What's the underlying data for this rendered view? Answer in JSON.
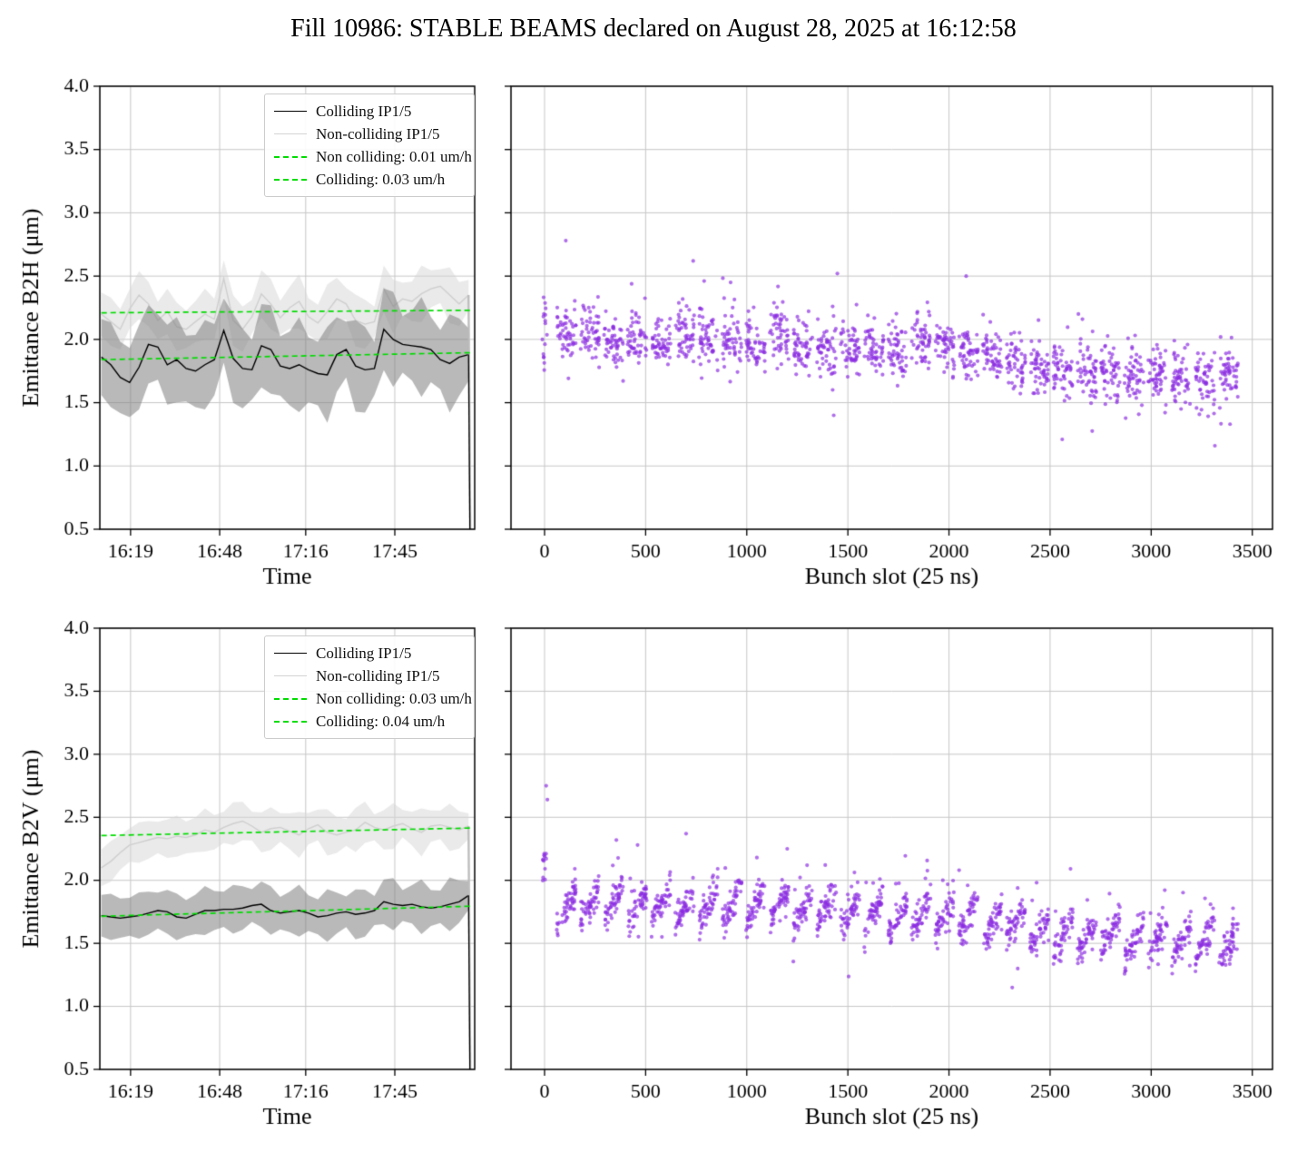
{
  "title": "Fill 10986: STABLE BEAMS declared on August 28, 2025 at 16:12:58",
  "colors": {
    "scatter": "#8a2be2",
    "fit_line": "#00dd00",
    "grid": "#c7c7c7",
    "axis": "#000000",
    "colliding_line": "#000000",
    "non_colliding_line": "#cfcfcf",
    "colliding_band": "rgba(128,128,128,0.55)",
    "non_colliding_band": "rgba(214,214,214,0.5)"
  },
  "chart_data": [
    {
      "id": "b2h_time",
      "type": "line",
      "xlabel": "Time",
      "ylabel": "Emittance B2H (μm)",
      "xlim": [
        0,
        122
      ],
      "ylim": [
        0.5,
        4.0
      ],
      "yticks": [
        0.5,
        1.0,
        1.5,
        2.0,
        2.5,
        3.0,
        3.5,
        4.0
      ],
      "xticks": {
        "pos": [
          10,
          39,
          67,
          96
        ],
        "labels": [
          "16:19",
          "16:48",
          "17:16",
          "17:45"
        ]
      },
      "grid": true,
      "legend": [
        {
          "label": "Colliding IP1/5",
          "style": "solid",
          "color": "#000000"
        },
        {
          "label": "Non-colliding IP1/5",
          "style": "solid",
          "color": "#d4d4d4"
        },
        {
          "label": "Non colliding: 0.01 um/h",
          "style": "dashed",
          "color": "#00dd00"
        },
        {
          "label": "Colliding: 0.03 um/h",
          "style": "dashed",
          "color": "#00dd00"
        }
      ],
      "t_start": 0.5,
      "t_end": 120,
      "series": [
        {
          "name": "Non-colliding IP1/5",
          "role": "non_colliding",
          "band_halfwidth": 0.17,
          "values": [
            2.2,
            2.14,
            2.08,
            2.24,
            2.35,
            2.28,
            2.15,
            2.22,
            2.1,
            2.08,
            2.14,
            2.2,
            2.16,
            2.48,
            2.15,
            2.08,
            2.18,
            2.36,
            2.28,
            2.17,
            2.25,
            2.3,
            2.18,
            2.13,
            2.22,
            2.32,
            2.28,
            2.15,
            2.12,
            2.14,
            2.4,
            2.26,
            2.32,
            2.3,
            2.36,
            2.4,
            2.42,
            2.35,
            2.28,
            2.35
          ]
        },
        {
          "name": "Colliding IP1/5",
          "role": "colliding",
          "band_halfwidth": 0.3,
          "values": [
            1.86,
            1.8,
            1.7,
            1.66,
            1.78,
            1.96,
            1.94,
            1.8,
            1.84,
            1.77,
            1.75,
            1.8,
            1.84,
            2.07,
            1.85,
            1.77,
            1.76,
            1.95,
            1.92,
            1.79,
            1.77,
            1.8,
            1.76,
            1.73,
            1.72,
            1.88,
            1.92,
            1.79,
            1.76,
            1.77,
            2.08,
            2.0,
            1.96,
            1.95,
            1.94,
            1.92,
            1.84,
            1.81,
            1.86,
            1.88
          ]
        }
      ],
      "fits": [
        {
          "name": "Non colliding: 0.01 um/h",
          "y_start": 2.21,
          "y_end": 2.23
        },
        {
          "name": "Colliding: 0.03 um/h",
          "y_start": 1.84,
          "y_end": 1.895
        }
      ],
      "end_drop": {
        "t": 120.6,
        "y_bottom": 0.32
      }
    },
    {
      "id": "b2h_bunch",
      "type": "scatter",
      "xlabel": "Bunch slot (25 ns)",
      "ylabel": "",
      "xlim": [
        -166,
        3600
      ],
      "ylim": [
        0.5,
        4.0
      ],
      "yticks": [
        0.5,
        1.0,
        1.5,
        2.0,
        2.5,
        3.0,
        3.5,
        4.0
      ],
      "xticks": {
        "pos": [
          0,
          500,
          1000,
          1500,
          2000,
          2500,
          3000,
          3500
        ],
        "labels": [
          "0",
          "500",
          "1000",
          "1500",
          "2000",
          "2500",
          "3000",
          "3500"
        ]
      },
      "grid": true,
      "generator": {
        "seed": 42,
        "trains": {
          "count": 29,
          "start": 60,
          "spacing": 117,
          "span": 95,
          "points": 52,
          "within_slope": -0.05,
          "sigma": 0.105,
          "train_jitter": 0.05,
          "trend": [
            [
              0,
              2.04
            ],
            [
              1000,
              1.97
            ],
            [
              2100,
              1.93
            ],
            [
              2500,
              1.77
            ],
            [
              3450,
              1.7
            ]
          ]
        },
        "head": {
          "x": 0,
          "x_jitter": 12,
          "n": 16,
          "y_min": 1.75,
          "y_max": 2.38
        },
        "outliers": [
          [
            105,
            2.78
          ],
          [
            735,
            2.62
          ],
          [
            1448,
            2.52
          ],
          [
            2085,
            2.5
          ],
          [
            1430,
            1.4
          ],
          [
            2560,
            1.21
          ],
          [
            3315,
            1.16
          ],
          [
            3390,
            1.33
          ],
          [
            2640,
            2.2
          ],
          [
            2660,
            2.16
          ],
          [
            920,
            2.45
          ]
        ]
      }
    },
    {
      "id": "b2v_time",
      "type": "line",
      "xlabel": "Time",
      "ylabel": "Emittance B2V (μm)",
      "xlim": [
        0,
        122
      ],
      "ylim": [
        0.5,
        4.0
      ],
      "yticks": [
        0.5,
        1.0,
        1.5,
        2.0,
        2.5,
        3.0,
        3.5,
        4.0
      ],
      "xticks": {
        "pos": [
          10,
          39,
          67,
          96
        ],
        "labels": [
          "16:19",
          "16:48",
          "17:16",
          "17:45"
        ]
      },
      "grid": true,
      "legend": [
        {
          "label": "Colliding IP1/5",
          "style": "solid",
          "color": "#000000"
        },
        {
          "label": "Non-colliding IP1/5",
          "style": "solid",
          "color": "#d4d4d4"
        },
        {
          "label": "Non colliding: 0.03 um/h",
          "style": "dashed",
          "color": "#00dd00"
        },
        {
          "label": "Colliding: 0.04 um/h",
          "style": "dashed",
          "color": "#00dd00"
        }
      ],
      "t_start": 0.5,
      "t_end": 120,
      "series": [
        {
          "name": "Non-colliding IP1/5",
          "role": "non_colliding",
          "band_halfwidth": 0.145,
          "values": [
            2.1,
            2.15,
            2.22,
            2.28,
            2.3,
            2.32,
            2.34,
            2.33,
            2.35,
            2.34,
            2.36,
            2.4,
            2.38,
            2.42,
            2.45,
            2.47,
            2.43,
            2.38,
            2.41,
            2.42,
            2.39,
            2.36,
            2.41,
            2.44,
            2.38,
            2.36,
            2.38,
            2.4,
            2.46,
            2.42,
            2.4,
            2.43,
            2.45,
            2.41,
            2.38,
            2.43,
            2.44,
            2.42,
            2.4,
            2.43
          ]
        },
        {
          "name": "Colliding IP1/5",
          "role": "colliding",
          "band_halfwidth": 0.165,
          "values": [
            1.72,
            1.71,
            1.7,
            1.71,
            1.72,
            1.74,
            1.76,
            1.75,
            1.71,
            1.7,
            1.73,
            1.76,
            1.76,
            1.77,
            1.77,
            1.78,
            1.8,
            1.81,
            1.76,
            1.74,
            1.75,
            1.76,
            1.74,
            1.71,
            1.72,
            1.74,
            1.75,
            1.73,
            1.74,
            1.76,
            1.83,
            1.81,
            1.8,
            1.81,
            1.79,
            1.78,
            1.79,
            1.81,
            1.83,
            1.88
          ]
        }
      ],
      "fits": [
        {
          "name": "Non colliding: 0.03 um/h",
          "y_start": 2.355,
          "y_end": 2.415
        },
        {
          "name": "Colliding: 0.04 um/h",
          "y_start": 1.715,
          "y_end": 1.795
        }
      ],
      "end_drop": {
        "t": 120.6,
        "y_bottom": 0.32
      }
    },
    {
      "id": "b2v_bunch",
      "type": "scatter",
      "xlabel": "Bunch slot (25 ns)",
      "ylabel": "",
      "xlim": [
        -166,
        3600
      ],
      "ylim": [
        0.5,
        4.0
      ],
      "yticks": [
        0.5,
        1.0,
        1.5,
        2.0,
        2.5,
        3.0,
        3.5,
        4.0
      ],
      "xticks": {
        "pos": [
          0,
          500,
          1000,
          1500,
          2000,
          2500,
          3000,
          3500
        ],
        "labels": [
          "0",
          "500",
          "1000",
          "1500",
          "2000",
          "2500",
          "3000",
          "3500"
        ]
      },
      "grid": true,
      "generator": {
        "seed": 7,
        "trains": {
          "count": 29,
          "start": 60,
          "spacing": 117,
          "span": 95,
          "points": 52,
          "within_slope": 0.28,
          "sigma": 0.06,
          "train_jitter": 0.04,
          "trend": [
            [
              0,
              1.82
            ],
            [
              800,
              1.79
            ],
            [
              1600,
              1.75
            ],
            [
              2200,
              1.67
            ],
            [
              2600,
              1.56
            ],
            [
              3450,
              1.51
            ]
          ]
        },
        "head": {
          "x": 0,
          "x_jitter": 10,
          "n": 12,
          "y_min": 1.95,
          "y_max": 2.22
        },
        "outliers": [
          [
            8,
            2.75
          ],
          [
            14,
            2.64
          ],
          [
            355,
            2.32
          ],
          [
            700,
            2.37
          ],
          [
            460,
            2.28
          ],
          [
            1050,
            2.18
          ],
          [
            2050,
            2.08
          ],
          [
            2340,
            1.3
          ],
          [
            1200,
            2.25
          ]
        ]
      }
    }
  ]
}
